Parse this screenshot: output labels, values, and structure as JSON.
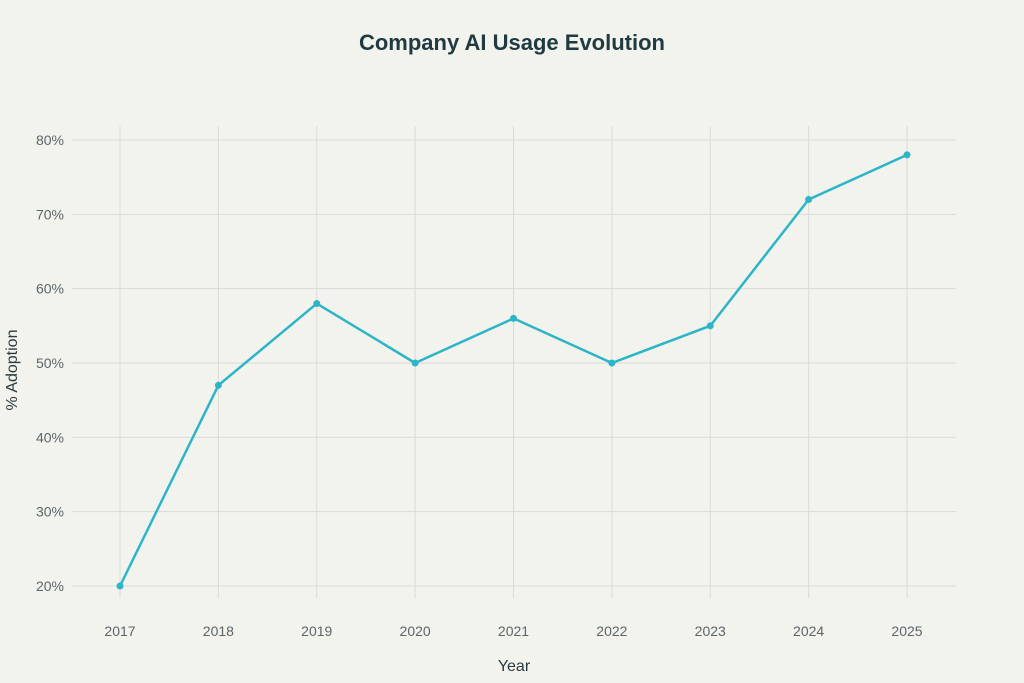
{
  "chart_data": {
    "type": "line",
    "title": "Company AI Usage Evolution",
    "xlabel": "Year",
    "ylabel": "% Adoption",
    "x": [
      "2017",
      "2018",
      "2019",
      "2020",
      "2021",
      "2022",
      "2023",
      "2024",
      "2025"
    ],
    "series": [
      {
        "values": [
          20,
          47,
          58,
          50,
          56,
          50,
          55,
          72,
          78
        ]
      }
    ],
    "y_ticks": [
      20,
      30,
      40,
      50,
      60,
      70,
      80
    ],
    "y_tick_labels": [
      "20%",
      "30%",
      "40%",
      "50%",
      "60%",
      "70%",
      "80%"
    ],
    "ylim": [
      20,
      80
    ],
    "grid": true,
    "legend": "none",
    "colors": {
      "line": "#2cb5c8",
      "background": "#f3f3ee"
    }
  }
}
